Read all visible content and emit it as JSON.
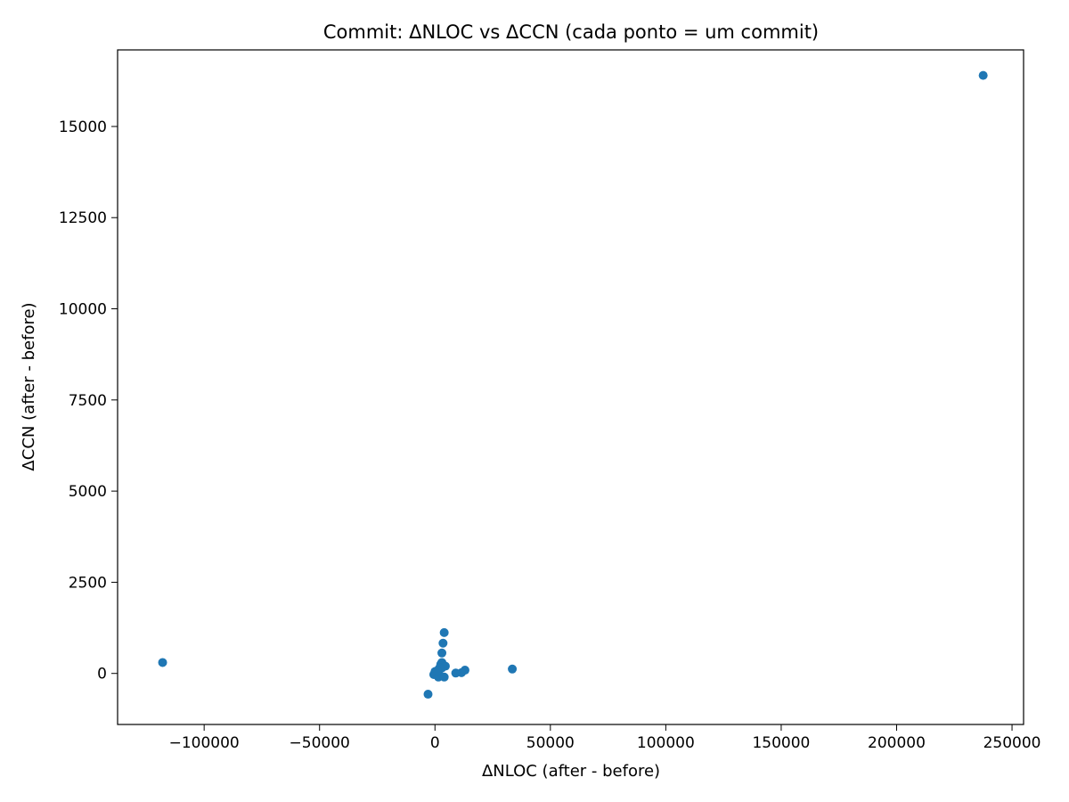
{
  "chart_data": {
    "type": "scatter",
    "title": "Commit: ΔNLOC vs ΔCCN (cada ponto = um commit)",
    "xlabel": "ΔNLOC (after - before)",
    "ylabel": "ΔCCN (after - before)",
    "xlim": [
      -137500,
      255000
    ],
    "ylim": [
      -1400,
      17100
    ],
    "xticks": [
      -100000,
      -50000,
      0,
      50000,
      100000,
      150000,
      200000,
      250000
    ],
    "xtick_labels": [
      "−100000",
      "−50000",
      "0",
      "50000",
      "100000",
      "150000",
      "200000",
      "250000"
    ],
    "yticks": [
      0,
      2500,
      5000,
      7500,
      10000,
      12500,
      15000
    ],
    "ytick_labels": [
      "0",
      "2500",
      "5000",
      "7500",
      "10000",
      "12500",
      "15000"
    ],
    "grid": false,
    "color": "#1f77b4",
    "series": [
      {
        "x": [
          237500,
          -118000,
          -3000,
          33500,
          13000,
          11500,
          9000,
          4000,
          3500,
          3000,
          3000,
          2500,
          2000,
          2500,
          1500,
          1000,
          500,
          0,
          -500,
          1500,
          3000,
          4500,
          4000,
          2000,
          1000
        ],
        "y": [
          16400,
          300,
          -570,
          120,
          90,
          20,
          10,
          1120,
          830,
          560,
          300,
          250,
          100,
          200,
          50,
          20,
          0,
          50,
          -30,
          -100,
          150,
          200,
          -100,
          150,
          80
        ]
      }
    ]
  }
}
